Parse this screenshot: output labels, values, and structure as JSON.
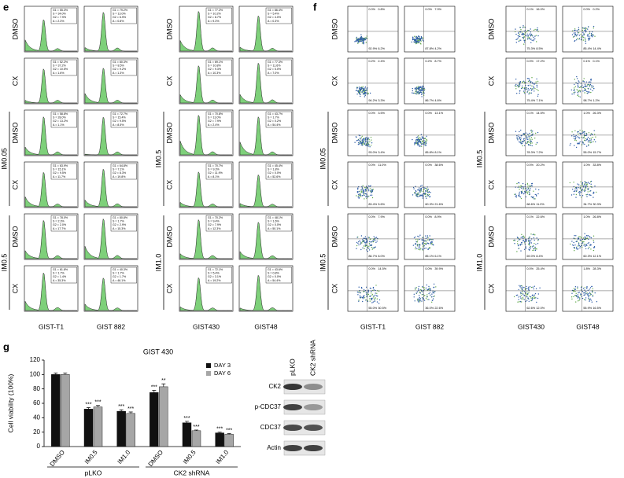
{
  "panels": {
    "e": {
      "letter": "e",
      "columns": [
        "GIST-T1",
        "GIST 882",
        "GIST430",
        "GIST48"
      ],
      "row_labels": [
        "DMSO",
        "CX",
        "DMSO",
        "CX",
        "DMSO",
        "CX"
      ],
      "groups_left": [
        "IM0.05",
        "IM0.5"
      ],
      "groups_right": [
        "IM0.5",
        "IM1.0"
      ],
      "plots": [
        [
          [
            "G1 = 55.3%",
            "S = 34.0%",
            "G2 = 7.9%",
            "A = 2.3%"
          ],
          [
            "G1 = 52.2%",
            "S = 37.2%",
            "G2 = 10.5%",
            "A = 1.6%"
          ],
          [
            "G1 = 58.8%",
            "S = 28.0%",
            "G2 = 13.2%",
            "A = 1.1%"
          ],
          [
            "G1 = 63.9%",
            "S = 15.1%",
            "G2 = 9.5%",
            "A = 11.7%"
          ],
          [
            "G1 = 78.0%",
            "S = 2.3%",
            "G2 = 2.0%",
            "A = 17.7%"
          ],
          [
            "G1 = 61.8%",
            "S = 1.7%",
            "G2 = 1.4%",
            "A = 35.3%"
          ]
        ],
        [
          [
            "G1 = 79.2%",
            "S = 13.0%",
            "G2 = 6.9%",
            "A = 0.8%"
          ],
          [
            "G1 = 80.3%",
            "S = 8.5%",
            "G2 = 9.2%",
            "A = 1.3%"
          ],
          [
            "G1 = 72.7%",
            "S = 15.4%",
            "G2 = 9.5%",
            "A = 8.5%"
          ],
          [
            "G1 = 64.8%",
            "S = 7.1%",
            "G2 = 8.3%",
            "A = 19.8%"
          ],
          [
            "G1 = 80.8%",
            "S = 1.7%",
            "G2 = 2.9%",
            "A = 15.3%"
          ],
          [
            "G1 = 40.3%",
            "S = 1.7%",
            "G2 = 1.7%",
            "A = 46.1%"
          ]
        ],
        [
          [
            "G1 = 77.2%",
            "S = 10.2%",
            "G2 = 8.7%",
            "A = 9.3%"
          ],
          [
            "G1 = 69.1%",
            "S = 10.8%",
            "G2 = 9.3%",
            "A = 10.3%"
          ],
          [
            "G1 = 70.8%",
            "S = 13.0%",
            "G2 = 7.9%",
            "A = 2.4%"
          ],
          [
            "G1 = 70.7%",
            "S = 9.3%",
            "G2 = 11.9%",
            "A = 8.1%"
          ],
          [
            "G1 = 70.2%",
            "S = 9.4%",
            "G2 = 7.9%",
            "A = 12.3%"
          ],
          [
            "G1 = 72.1%",
            "S = 5.4%",
            "G2 = 3.1%",
            "A = 19.2%"
          ]
        ],
        [
          [
            "G1 = 86.4%",
            "S = 5.4%",
            "G2 = 4.0%",
            "A = 0.3%"
          ],
          [
            "G1 = 77.3%",
            "S = 11.6%",
            "G2 = 5.0%",
            "A = 7.0%"
          ],
          [
            "G1 = 43.7%",
            "S = 1.7%",
            "G2 = 0.2%",
            "A = 54.4%"
          ],
          [
            "G1 = 45.4%",
            "S = 1.8%",
            "G2 = 0.0%",
            "A = 52.6%"
          ],
          [
            "G1 = 48.1%",
            "S = 1.6%",
            "G2 = 0.0%",
            "A = 50.1%"
          ],
          [
            "G1 = 43.6%",
            "S = 0.8%",
            "G2 = 0.0%",
            "A = 54.4%"
          ]
        ]
      ]
    },
    "f": {
      "letter": "f",
      "columns": [
        "GIST-T1",
        "GIST 882",
        "GIST430",
        "GIST48"
      ],
      "row_labels": [
        "DMSO",
        "CX",
        "DMSO",
        "CX",
        "DMSO",
        "CX"
      ],
      "groups_left": [
        "IM0.05",
        "IM0.5"
      ],
      "groups_right": [
        "IM0.5",
        "IM1.0"
      ],
      "plots": [
        [
          [
            "0.0%",
            "0.8%",
            "92.9%",
            "6.2%"
          ],
          [
            "0.2%",
            "2.4%",
            "94.2%",
            "3.3%"
          ],
          [
            "0.0%",
            "3.5%",
            "93.0%",
            "3.4%"
          ],
          [
            "0.0%",
            "11.0%",
            "83.4%",
            "5.6%"
          ],
          [
            "0.0%",
            "7.9%",
            "86.7%",
            "8.0%"
          ],
          [
            "0.0%",
            "14.5%",
            "55.0%",
            "30.5%"
          ]
        ],
        [
          [
            "0.0%",
            "7.9%",
            "87.8%",
            "4.2%"
          ],
          [
            "0.2%",
            "8.7%",
            "86.7%",
            "4.6%"
          ],
          [
            "0.0%",
            "13.1%",
            "85.8%",
            "8.1%"
          ],
          [
            "0.0%",
            "38.6%",
            "60.3%",
            "21.6%"
          ],
          [
            "0.0%",
            "8.9%",
            "85.1%",
            "6.1%"
          ],
          [
            "0.0%",
            "39.9%",
            "36.0%",
            "22.6%"
          ]
        ],
        [
          [
            "0.1%",
            "16.0%",
            "75.3%",
            "8.5%"
          ],
          [
            "0.0%",
            "17.2%",
            "75.4%",
            "7.1%"
          ],
          [
            "0.1%",
            "14.5%",
            "78.3%",
            "7.2%"
          ],
          [
            "0.0%",
            "20.2%",
            "68.6%",
            "11.0%"
          ],
          [
            "0.1%",
            "22.6%",
            "69.0%",
            "8.4%"
          ],
          [
            "0.0%",
            "25.4%",
            "62.6%",
            "12.0%"
          ]
        ],
        [
          [
            "0.0%",
            "0.2%",
            "85.4%",
            "14.4%"
          ],
          [
            "0.1%",
            "0.1%",
            "98.7%",
            "1.2%"
          ],
          [
            "1.0%",
            "26.3%",
            "55.0%",
            "15.7%"
          ],
          [
            "1.0%",
            "33.8%",
            "34.7%",
            "30.3%"
          ],
          [
            "1.0%",
            "26.8%",
            "60.3%",
            "12.1%"
          ],
          [
            "1.8%",
            "28.3%",
            "55.9%",
            "16.5%"
          ]
        ]
      ]
    },
    "g": {
      "letter": "g"
    },
    "blot": {
      "lanes": [
        "pLKO",
        "CK2 shRNA"
      ],
      "rows": [
        "CK2",
        "p-CDC37",
        "CDC37",
        "Actin"
      ]
    }
  },
  "chart_data": {
    "type": "bar",
    "title": "GIST 430",
    "y_label": "Cell viability (100%)",
    "categories": [
      "DMSO",
      "IM0.5",
      "IM1.0",
      "DMSO",
      "IM0.5",
      "IM1.0"
    ],
    "groups": [
      "pLKO",
      "CK2 shRNA"
    ],
    "series": [
      {
        "name": "DAY 3",
        "color": "#111111",
        "values": [
          100,
          52,
          49,
          75,
          33,
          19
        ],
        "errors": [
          2,
          2,
          2,
          3,
          2,
          1
        ],
        "annotations": [
          null,
          "***",
          "***",
          "***",
          "***",
          "***"
        ]
      },
      {
        "name": "DAY 6",
        "color": "#a6a6a6",
        "values": [
          100,
          55,
          46,
          83,
          22,
          17
        ],
        "errors": [
          2,
          2,
          2,
          4,
          1,
          1
        ],
        "annotations": [
          null,
          "***",
          "***",
          "**",
          "***",
          "***"
        ]
      }
    ],
    "ylim": [
      0,
      120
    ],
    "yticks": [
      0,
      20,
      40,
      60,
      80,
      100,
      120
    ]
  }
}
